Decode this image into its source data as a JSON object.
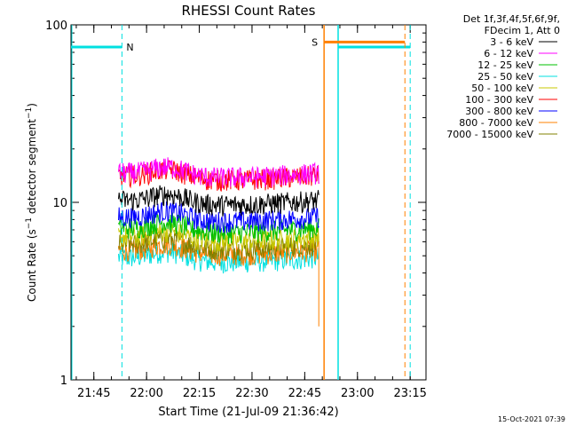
{
  "chart_data": {
    "type": "line",
    "title": "RHESSI Count Rates",
    "xlabel": "Start Time (21-Jul-09 21:36:42)",
    "ylabel_main": "Count Rate (s",
    "ylabel_sup1": "−1",
    "ylabel_mid": " detector segment",
    "ylabel_sup2": "−1",
    "ylabel_end": ")",
    "y_scale": "log",
    "ylim": [
      1,
      100
    ],
    "y_ticks": [
      {
        "value": 1,
        "label": "1"
      },
      {
        "value": 10,
        "label": "10"
      },
      {
        "value": 100,
        "label": "100"
      }
    ],
    "x_range_minutes": [
      21.3,
      30.5,
      99.0,
      159.0
    ],
    "x_ticks": [
      {
        "label": "21:45",
        "t": "21:45"
      },
      {
        "label": "22:00",
        "t": "22:00"
      },
      {
        "label": "22:15",
        "t": "22:15"
      },
      {
        "label": "22:30",
        "t": "22:30"
      },
      {
        "label": "22:45",
        "t": "22:45"
      },
      {
        "label": "23:00",
        "t": "23:00"
      },
      {
        "label": "23:15",
        "t": "23:15"
      }
    ],
    "x_start": "21:38:30",
    "x_end": "23:19:30",
    "grid": false,
    "legend_position": "top-right outside",
    "legend_header": [
      "Det 1f,3f,4f,5f,6f,9f,",
      "FDecim 1, Att 0"
    ],
    "series": [
      {
        "name": "3 - 6 keV",
        "color": "#000000",
        "level": 10.3
      },
      {
        "name": "6 - 12 keV",
        "color": "#ff00ff",
        "level": 14.7
      },
      {
        "name": "12 - 25 keV",
        "color": "#00c000",
        "level": 7.2
      },
      {
        "name": "25 - 50 keV",
        "color": "#00e0e0",
        "level": 4.9
      },
      {
        "name": "50 - 100 keV",
        "color": "#c8c800",
        "level": 6.4
      },
      {
        "name": "100 - 300 keV",
        "color": "#ff0000",
        "level": 14.2
      },
      {
        "name": "300 - 800 keV",
        "color": "#0000ff",
        "level": 8.3
      },
      {
        "name": "800 - 7000 keV",
        "color": "#ff8000",
        "level": 5.4
      },
      {
        "name": "7000 - 15000 keV",
        "color": "#808000",
        "level": 5.8
      }
    ],
    "data_time_range": [
      "21:52:00",
      "22:49:00"
    ],
    "annotations": {
      "night_label": "N",
      "saa_label": "S",
      "night_periods": [
        {
          "start": "21:38:30",
          "end": "21:53:00",
          "level": 75
        },
        {
          "start": "22:54:30",
          "end": "23:15:00",
          "level": 75
        }
      ],
      "saa_periods": [
        {
          "start": "22:50:30",
          "end": "23:13:30",
          "level": 80
        }
      ]
    }
  },
  "footer": {
    "date_stamp": "15-Oct-2021 07:39"
  }
}
